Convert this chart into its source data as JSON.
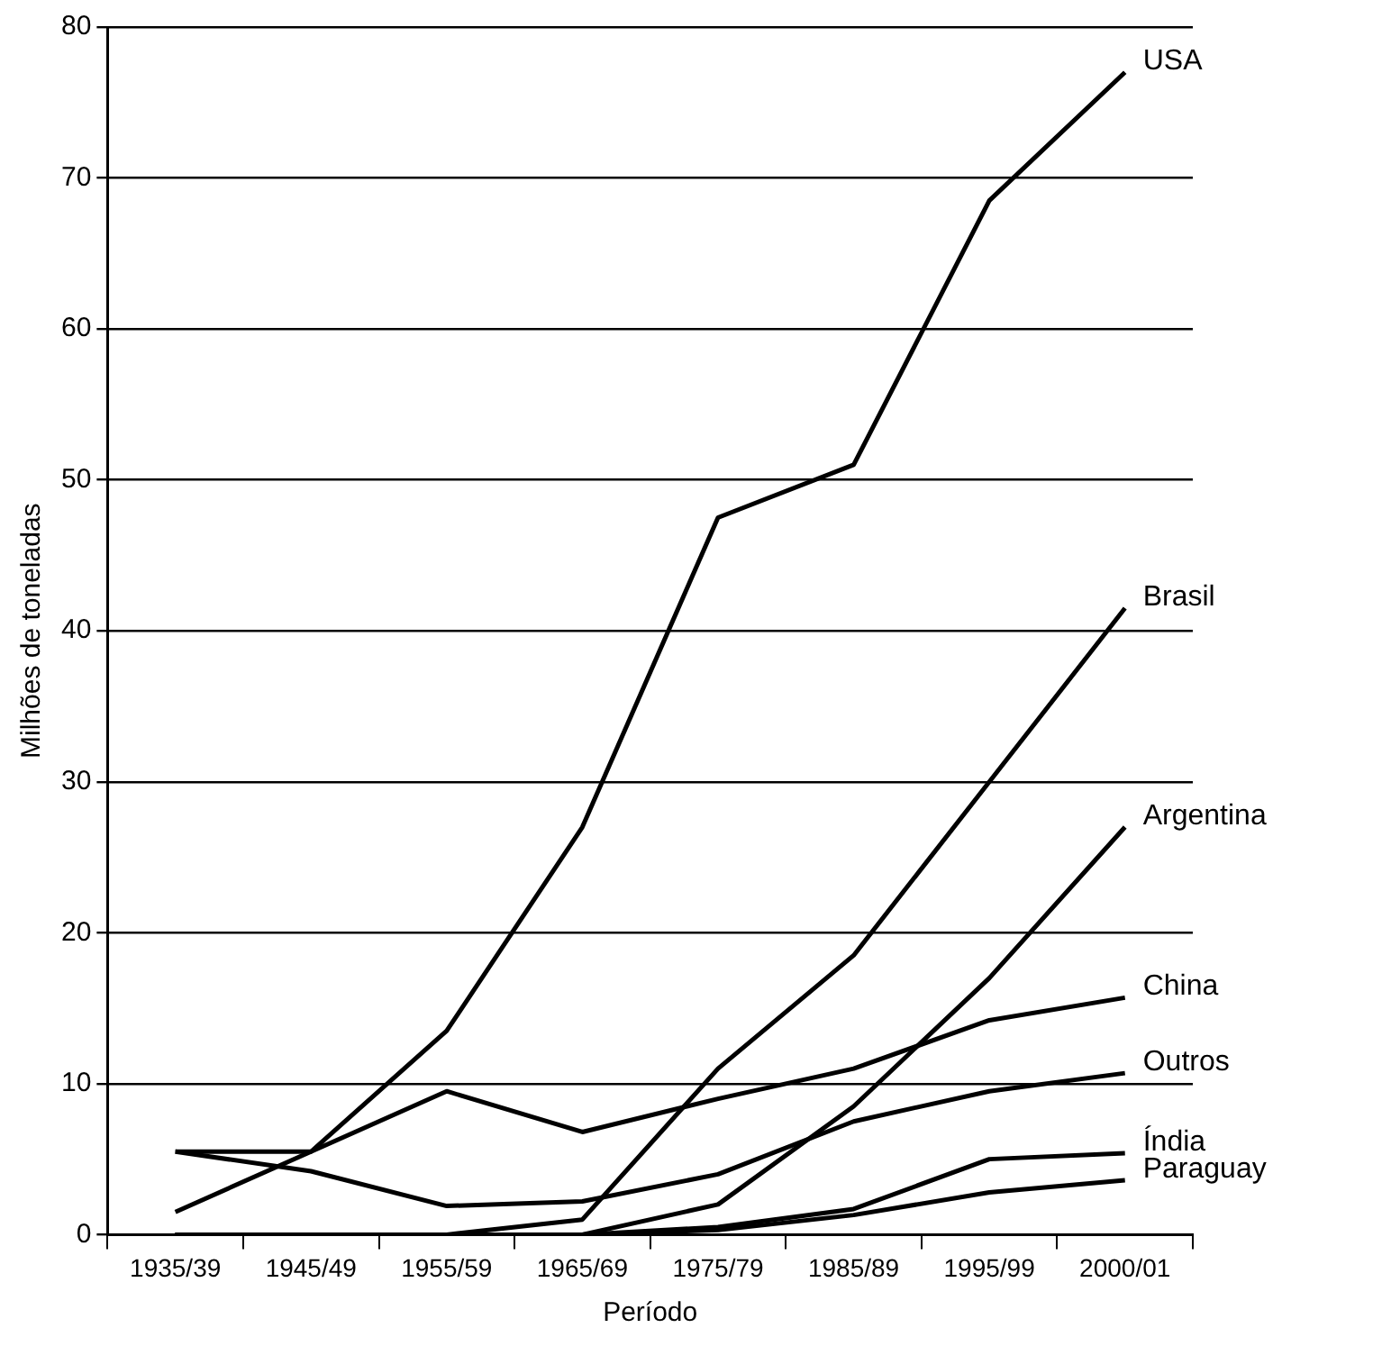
{
  "chart_data": {
    "type": "line",
    "xlabel": "Período",
    "ylabel": "Milhões de toneladas",
    "categories": [
      "1935/39",
      "1945/49",
      "1955/59",
      "1965/69",
      "1975/79",
      "1985/89",
      "1995/99",
      "2000/01"
    ],
    "ylim": [
      0,
      80
    ],
    "yticks": [
      0,
      10,
      20,
      30,
      40,
      50,
      60,
      70,
      80
    ],
    "grid": "y",
    "legend": false,
    "marker": "none",
    "line_style": "solid",
    "series": [
      {
        "name": "USA",
        "color": "#000000",
        "values": [
          1.5,
          5.5,
          13.5,
          27,
          47.5,
          51,
          68.5,
          77
        ]
      },
      {
        "name": "Brasil",
        "color": "#000000",
        "values": [
          0,
          0,
          0,
          1,
          11,
          18.5,
          30,
          41.5
        ]
      },
      {
        "name": "Argentina",
        "color": "#000000",
        "values": [
          0,
          0,
          0,
          0,
          2,
          8.5,
          17,
          27
        ]
      },
      {
        "name": "China",
        "color": "#000000",
        "values": [
          5.5,
          5.5,
          9.5,
          6.8,
          9,
          11,
          14.2,
          15.7
        ]
      },
      {
        "name": "Outros",
        "color": "#000000",
        "values": [
          5.5,
          4.2,
          1.9,
          2.2,
          4,
          7.5,
          9.5,
          10.7
        ]
      },
      {
        "name": "Índia",
        "color": "#000000",
        "values": [
          0,
          0,
          0,
          0,
          0.5,
          1.7,
          5,
          5.4
        ]
      },
      {
        "name": "Paraguay",
        "color": "#000000",
        "values": [
          0,
          0,
          0,
          0,
          0.3,
          1.3,
          2.8,
          3.6
        ]
      }
    ]
  }
}
